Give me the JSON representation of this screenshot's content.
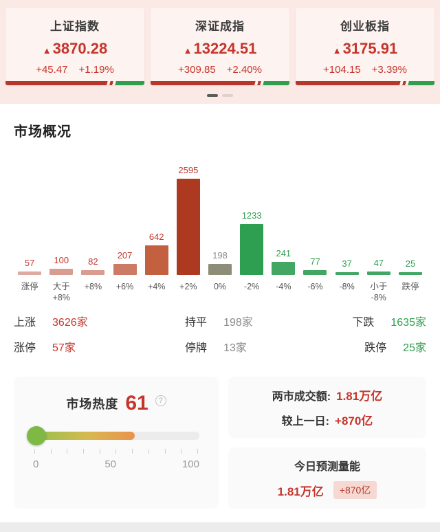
{
  "colors": {
    "red": "#c5352b",
    "green": "#2f9e4e",
    "gray": "#8a8a8a",
    "header_bg": "#fbe9e5"
  },
  "header": {
    "indices": [
      {
        "name": "上证指数",
        "arrow": "▲",
        "value": "3870.28",
        "change": "+45.47",
        "percent": "+1.19%",
        "up_ratio": 76
      },
      {
        "name": "深证成指",
        "arrow": "▲",
        "value": "13224.51",
        "change": "+309.85",
        "percent": "+2.40%",
        "up_ratio": 78
      },
      {
        "name": "创业板指",
        "arrow": "▲",
        "value": "3175.91",
        "change": "+104.15",
        "percent": "+3.39%",
        "up_ratio": 78
      }
    ],
    "pagination": {
      "total": 2,
      "active": 0
    }
  },
  "section": {
    "title": "市场概况"
  },
  "chart_data": {
    "type": "bar",
    "title": "市场概况 涨跌分布",
    "categories": [
      "涨停",
      "大于\n+8%",
      "+8%",
      "+6%",
      "+4%",
      "+2%",
      "0%",
      "-2%",
      "-4%",
      "-6%",
      "-8%",
      "小于\n-8%",
      "跌停"
    ],
    "values": [
      57,
      100,
      82,
      207,
      642,
      2595,
      198,
      1233,
      241,
      77,
      37,
      47,
      25
    ],
    "bar_colors": [
      "#dcaaa0",
      "#d89c90",
      "#d89c90",
      "#cd7a64",
      "#c3603f",
      "#ad3a20",
      "#8e8d77",
      "#2e9e50",
      "#43a764",
      "#43a764",
      "#43a764",
      "#43a764",
      "#43a764"
    ],
    "label_colors": [
      "#c5352b",
      "#c5352b",
      "#c5352b",
      "#c5352b",
      "#c5352b",
      "#c5352b",
      "#8a8a8a",
      "#2f9e4e",
      "#2f9e4e",
      "#2f9e4e",
      "#2f9e4e",
      "#2f9e4e",
      "#2f9e4e"
    ],
    "ymax": 2595,
    "xlabel": "",
    "ylabel": "",
    "grid": false,
    "legend": false
  },
  "summary": {
    "rows": [
      {
        "c1": {
          "label": "上涨",
          "value": "3626家"
        },
        "c2": {
          "label": "持平",
          "value": "198家"
        },
        "c3": {
          "label": "下跌",
          "value": "1635家"
        }
      },
      {
        "c1": {
          "label": "涨停",
          "value": "57家"
        },
        "c2": {
          "label": "停牌",
          "value": "13家"
        },
        "c3": {
          "label": "跌停",
          "value": "25家"
        }
      }
    ]
  },
  "heat": {
    "label": "市场热度",
    "value": 61,
    "help_icon": "?",
    "scale": [
      "0",
      "50",
      "100"
    ]
  },
  "turnover": {
    "line1_label": "两市成交额:",
    "line1_value": "1.81万亿",
    "line2_label": "较上一日:",
    "line2_value": "+870亿"
  },
  "forecast": {
    "title": "今日预测量能",
    "value": "1.81万亿",
    "badge": "+870亿"
  }
}
